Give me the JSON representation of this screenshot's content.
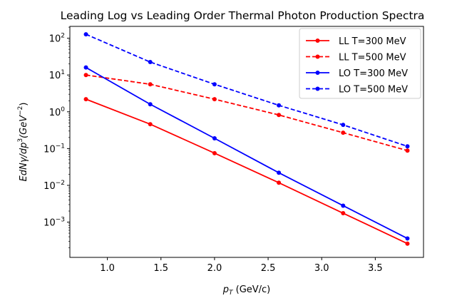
{
  "chart_data": {
    "type": "line",
    "title": "Leading Log vs Leading Order Thermal Photon Production Spectra",
    "xlabel": {
      "main": "p",
      "sub": "T",
      "rest": " (GeV/c)"
    },
    "ylabel": {
      "part1": "EdN",
      "gamma": "γ",
      "part2": "/dp",
      "sup1": "3",
      "part3": "(GeV",
      "sup2": "−2",
      "part4": ")"
    },
    "x": [
      0.8,
      1.4,
      2.0,
      2.6,
      3.2,
      3.8
    ],
    "xlim": [
      0.65,
      3.95
    ],
    "ylim": [
      0.00011,
      210
    ],
    "yscale": "log",
    "x_ticks": [
      {
        "value": 1.0,
        "label": "1.0"
      },
      {
        "value": 1.5,
        "label": "1.5"
      },
      {
        "value": 2.0,
        "label": "2.0"
      },
      {
        "value": 2.5,
        "label": "2.5"
      },
      {
        "value": 3.0,
        "label": "3.0"
      },
      {
        "value": 3.5,
        "label": "3.5"
      }
    ],
    "y_ticks": [
      {
        "value": 0.001,
        "base": "10",
        "exp": "−3"
      },
      {
        "value": 0.01,
        "base": "10",
        "exp": "−2"
      },
      {
        "value": 0.1,
        "base": "10",
        "exp": "−1"
      },
      {
        "value": 1,
        "base": "10",
        "exp": "0"
      },
      {
        "value": 10,
        "base": "10",
        "exp": "1"
      },
      {
        "value": 100,
        "base": "10",
        "exp": "2"
      }
    ],
    "grid": false,
    "legend_position": "top-right",
    "series": [
      {
        "name": "LL T=300 MeV",
        "color": "#ff0000",
        "linestyle": "solid",
        "marker": "dot",
        "values": [
          2.2,
          0.46,
          0.075,
          0.0118,
          0.00175,
          0.00026
        ]
      },
      {
        "name": "LL T=500 MeV",
        "color": "#ff0000",
        "linestyle": "dashed",
        "marker": "dot",
        "values": [
          10.0,
          5.6,
          2.2,
          0.82,
          0.27,
          0.088
        ]
      },
      {
        "name": "LO T=300 MeV",
        "color": "#0000ff",
        "linestyle": "solid",
        "marker": "dot",
        "values": [
          16.0,
          1.6,
          0.19,
          0.022,
          0.0028,
          0.00036
        ]
      },
      {
        "name": "LO T=500 MeV",
        "color": "#0000ff",
        "linestyle": "dashed",
        "marker": "dot",
        "values": [
          128,
          22.5,
          5.6,
          1.5,
          0.44,
          0.115
        ]
      }
    ]
  }
}
